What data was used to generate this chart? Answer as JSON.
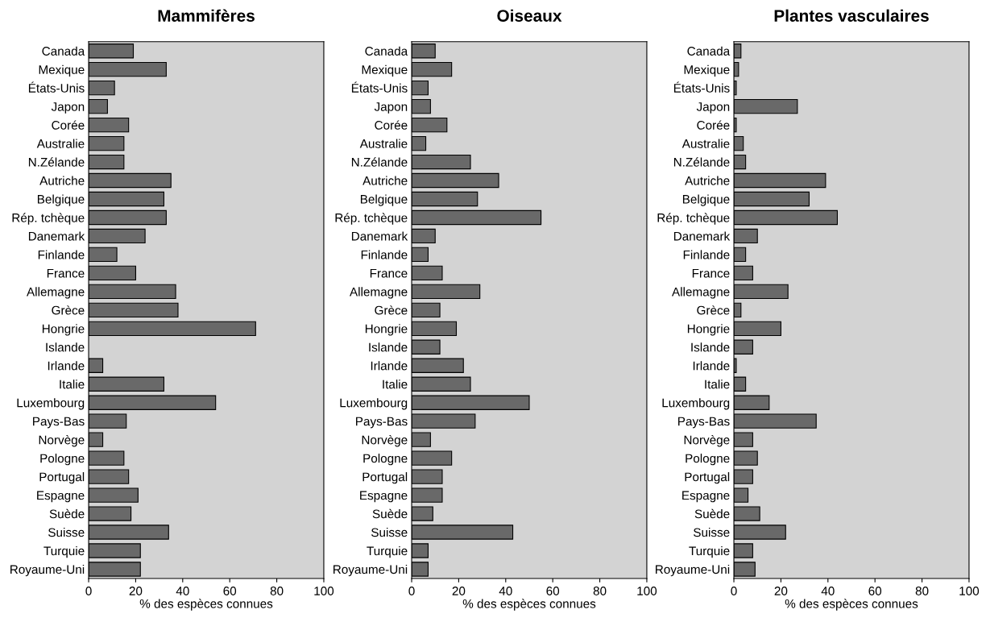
{
  "chart_data": [
    {
      "type": "bar",
      "orientation": "horizontal",
      "title": "Mammifères",
      "xlabel": "% des espèces connues",
      "color": "#696969",
      "xlim": [
        0,
        100
      ],
      "xticks": [
        0,
        20,
        40,
        60,
        80,
        100
      ],
      "grid": false,
      "legend": false,
      "categories": [
        "Canada",
        "Mexique",
        "États-Unis",
        "Japon",
        "Corée",
        "Australie",
        "N.Zélande",
        "Autriche",
        "Belgique",
        "Rép. tchèque",
        "Danemark",
        "Finlande",
        "France",
        "Allemagne",
        "Grèce",
        "Hongrie",
        "Islande",
        "Irlande",
        "Italie",
        "Luxembourg",
        "Pays-Bas",
        "Norvège",
        "Pologne",
        "Portugal",
        "Espagne",
        "Suède",
        "Suisse",
        "Turquie",
        "Royaume-Uni"
      ],
      "values": [
        19,
        33,
        11,
        8,
        17,
        15,
        15,
        35,
        32,
        33,
        24,
        12,
        20,
        37,
        38,
        71,
        null,
        6,
        32,
        54,
        16,
        6,
        15,
        17,
        21,
        18,
        34,
        22,
        22
      ]
    },
    {
      "type": "bar",
      "orientation": "horizontal",
      "title": "Oiseaux",
      "xlabel": "% des espèces connues",
      "color": "#696969",
      "xlim": [
        0,
        100
      ],
      "xticks": [
        0,
        20,
        40,
        60,
        80,
        100
      ],
      "grid": false,
      "legend": false,
      "categories": [
        "Canada",
        "Mexique",
        "États-Unis",
        "Japon",
        "Corée",
        "Australie",
        "N.Zélande",
        "Autriche",
        "Belgique",
        "Rép. tchèque",
        "Danemark",
        "Finlande",
        "France",
        "Allemagne",
        "Grèce",
        "Hongrie",
        "Islande",
        "Irlande",
        "Italie",
        "Luxembourg",
        "Pays-Bas",
        "Norvège",
        "Pologne",
        "Portugal",
        "Espagne",
        "Suède",
        "Suisse",
        "Turquie",
        "Royaume-Uni"
      ],
      "values": [
        10,
        17,
        7,
        8,
        15,
        6,
        25,
        37,
        28,
        55,
        10,
        7,
        13,
        29,
        12,
        19,
        12,
        22,
        25,
        50,
        27,
        8,
        17,
        13,
        13,
        9,
        43,
        7,
        7
      ]
    },
    {
      "type": "bar",
      "orientation": "horizontal",
      "title": "Plantes vasculaires",
      "xlabel": "% des espèces connues",
      "color": "#696969",
      "xlim": [
        0,
        100
      ],
      "xticks": [
        0,
        20,
        40,
        60,
        80,
        100
      ],
      "grid": false,
      "legend": false,
      "categories": [
        "Canada",
        "Mexique",
        "États-Unis",
        "Japon",
        "Corée",
        "Australie",
        "N.Zélande",
        "Autriche",
        "Belgique",
        "Rép. tchèque",
        "Danemark",
        "Finlande",
        "France",
        "Allemagne",
        "Grèce",
        "Hongrie",
        "Islande",
        "Irlande",
        "Italie",
        "Luxembourg",
        "Pays-Bas",
        "Norvège",
        "Pologne",
        "Portugal",
        "Espagne",
        "Suède",
        "Suisse",
        "Turquie",
        "Royaume-Uni"
      ],
      "values": [
        3,
        2,
        1,
        27,
        1,
        4,
        5,
        39,
        32,
        44,
        10,
        5,
        8,
        23,
        3,
        20,
        8,
        1,
        5,
        15,
        35,
        8,
        10,
        8,
        6,
        11,
        22,
        8,
        9
      ]
    }
  ]
}
